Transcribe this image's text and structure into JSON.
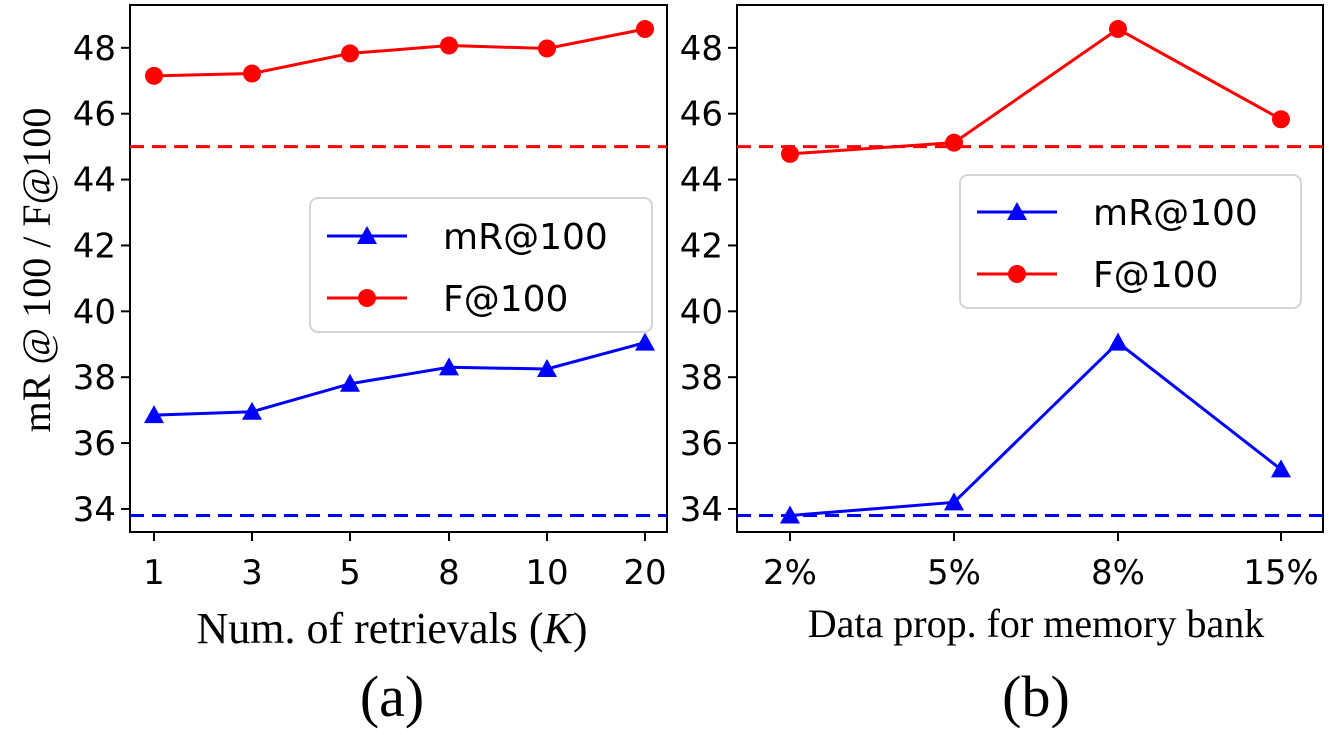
{
  "ylabel": "mR @ 100 / F@100",
  "chart_data": [
    {
      "type": "line",
      "panel_label": "(a)",
      "xlabel_prefix": "Num. of retrievals (",
      "xlabel_var": "K",
      "xlabel_suffix": ")",
      "categories": [
        "1",
        "3",
        "5",
        "8",
        "10",
        "20"
      ],
      "ylim": [
        33.3,
        49.3
      ],
      "yticks": [
        "34",
        "36",
        "38",
        "40",
        "42",
        "44",
        "46",
        "48"
      ],
      "series": [
        {
          "name": "mR@100",
          "color": "#0000ff",
          "marker": "triangle",
          "values": [
            36.85,
            36.95,
            37.8,
            38.3,
            38.25,
            39.05
          ],
          "baseline": 33.8
        },
        {
          "name": "F@100",
          "color": "#ff0000",
          "marker": "circle",
          "values": [
            47.15,
            47.22,
            47.83,
            48.07,
            47.98,
            48.57
          ],
          "baseline": 45.0
        }
      ],
      "legend": {
        "placement": "center-right",
        "items": [
          "mR@100",
          "F@100"
        ]
      }
    },
    {
      "type": "line",
      "panel_label": "(b)",
      "xlabel": "Data prop. for memory bank",
      "categories": [
        "2%",
        "5%",
        "8%",
        "15%"
      ],
      "ylim": [
        33.3,
        49.3
      ],
      "yticks": [
        "34",
        "36",
        "38",
        "40",
        "42",
        "44",
        "46",
        "48"
      ],
      "series": [
        {
          "name": "mR@100",
          "color": "#0000ff",
          "marker": "triangle",
          "values": [
            33.8,
            34.2,
            39.05,
            35.2
          ],
          "baseline": 33.8
        },
        {
          "name": "F@100",
          "color": "#ff0000",
          "marker": "circle",
          "values": [
            44.78,
            45.12,
            48.57,
            45.83
          ],
          "baseline": 45.0
        }
      ],
      "legend": {
        "placement": "center-right",
        "items": [
          "mR@100",
          "F@100"
        ]
      }
    }
  ]
}
